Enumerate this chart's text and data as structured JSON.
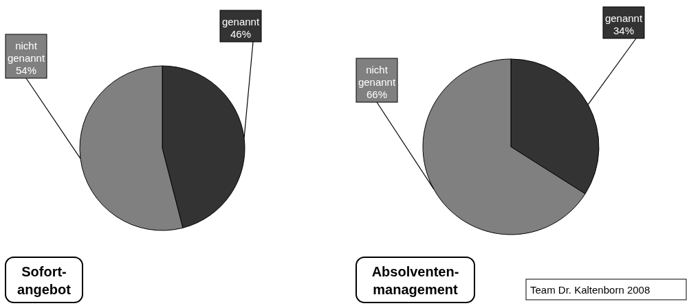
{
  "chart_data": [
    {
      "type": "pie",
      "title": "Sofort-\nangebot",
      "categories": [
        "genannt",
        "nicht genannt"
      ],
      "values": [
        46,
        54
      ],
      "colors": [
        "#333333",
        "#808080"
      ],
      "value_labels": [
        "46%",
        "54%"
      ]
    },
    {
      "type": "pie",
      "title": "Absolventen-\nmanagement",
      "categories": [
        "genannt",
        "nicht genannt"
      ],
      "values": [
        34,
        66
      ],
      "colors": [
        "#333333",
        "#808080"
      ],
      "value_labels": [
        "34%",
        "66%"
      ],
      "annotations": [
        "Team Dr. Kaltenborn 2008"
      ]
    }
  ]
}
